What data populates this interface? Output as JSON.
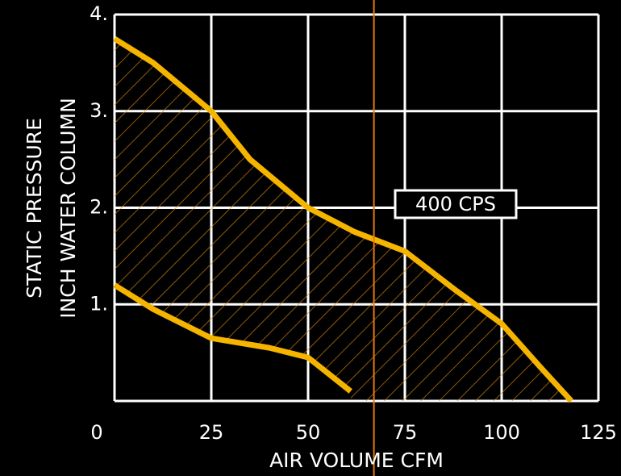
{
  "chart_data": {
    "type": "line",
    "xlabel": "AIR VOLUME CFM",
    "ylabel": [
      "STATIC PRESSURE",
      "INCH WATER COLUMN"
    ],
    "annotation": "400 CPS",
    "xlim": [
      0,
      125
    ],
    "ylim": [
      0,
      4
    ],
    "xticks": [
      0,
      25,
      50,
      75,
      100,
      125
    ],
    "yticks": [
      {
        "value": 1,
        "label": "1."
      },
      {
        "value": 2,
        "label": "2."
      },
      {
        "value": 3,
        "label": "3."
      },
      {
        "value": 4,
        "label": "4."
      }
    ],
    "grid": true,
    "reference_line_x": 67,
    "reference_line_color": "#e07a10",
    "series": [
      {
        "color": "#f5b400",
        "x": [
          0,
          10,
          25,
          35,
          50,
          62,
          75,
          88,
          100,
          110,
          118
        ],
        "values": [
          3.75,
          3.5,
          3.0,
          2.5,
          2.0,
          1.75,
          1.55,
          1.15,
          0.8,
          0.35,
          0
        ]
      },
      {
        "color": "#f5b400",
        "x": [
          0,
          10,
          25,
          40,
          50,
          61
        ],
        "values": [
          1.2,
          0.95,
          0.65,
          0.55,
          0.45,
          0.1
        ]
      }
    ]
  }
}
